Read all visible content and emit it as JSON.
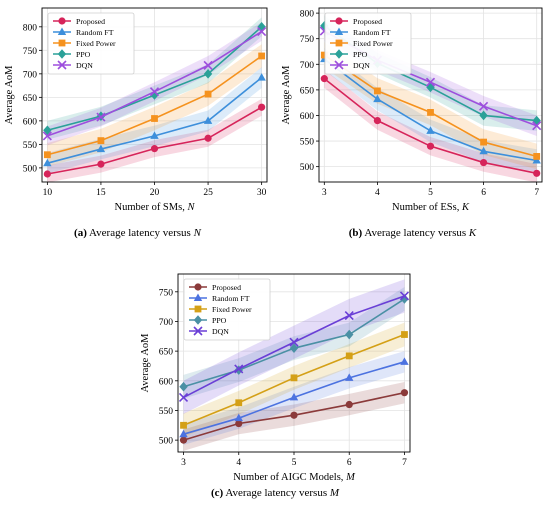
{
  "chart_data": [
    {
      "type": "line",
      "panel": "a",
      "caption": {
        "tag": "(a)",
        "text": "Average latency versus",
        "var": "N"
      },
      "xlabel": "Number of SMs,",
      "xvar": "N",
      "ylabel": "Average AoM",
      "x": [
        10,
        15,
        20,
        25,
        30
      ],
      "xlim": [
        9.5,
        30.5
      ],
      "ylim": [
        470,
        840
      ],
      "yticks": [
        500,
        550,
        600,
        650,
        700,
        750,
        800
      ],
      "grid": true,
      "legend_position": "top-left",
      "series": [
        {
          "name": "Proposed",
          "color": "#d6245a",
          "marker": "circle",
          "values": [
            487,
            508,
            541,
            563,
            629
          ],
          "band": 18
        },
        {
          "name": "Random FT",
          "color": "#3d8fdb",
          "marker": "triangle",
          "values": [
            510,
            540,
            568,
            600,
            692
          ],
          "band": 22
        },
        {
          "name": "Fixed Power",
          "color": "#f5921e",
          "marker": "square",
          "values": [
            528,
            558,
            605,
            657,
            738
          ],
          "band": 25
        },
        {
          "name": "PPO",
          "color": "#2aa198",
          "marker": "diamond",
          "values": [
            580,
            610,
            655,
            700,
            800
          ],
          "band": 20
        },
        {
          "name": "DQN",
          "color": "#9d4edd",
          "marker": "x",
          "values": [
            568,
            608,
            662,
            718,
            790
          ],
          "band": 20
        }
      ]
    },
    {
      "type": "line",
      "panel": "b",
      "caption": {
        "tag": "(b)",
        "text": "Average latency versus",
        "var": "K"
      },
      "xlabel": "Number of ESs,",
      "xvar": "K",
      "ylabel": "Average AoM",
      "x": [
        3,
        4,
        5,
        6,
        7
      ],
      "xlim": [
        2.9,
        7.1
      ],
      "ylim": [
        470,
        810
      ],
      "yticks": [
        500,
        550,
        600,
        650,
        700,
        750,
        800
      ],
      "grid": true,
      "legend_position": "top-left",
      "series": [
        {
          "name": "Proposed",
          "color": "#d6245a",
          "marker": "circle",
          "values": [
            672,
            590,
            540,
            508,
            487
          ],
          "band": 18
        },
        {
          "name": "Random FT",
          "color": "#3d8fdb",
          "marker": "triangle",
          "values": [
            710,
            632,
            570,
            530,
            512
          ],
          "band": 22
        },
        {
          "name": "Fixed Power",
          "color": "#f5921e",
          "marker": "square",
          "values": [
            718,
            648,
            606,
            548,
            520
          ],
          "band": 25
        },
        {
          "name": "PPO",
          "color": "#2aa198",
          "marker": "diamond",
          "values": [
            775,
            702,
            655,
            600,
            590
          ],
          "band": 20
        },
        {
          "name": "DQN",
          "color": "#9d4edd",
          "marker": "x",
          "values": [
            765,
            708,
            665,
            618,
            580
          ],
          "band": 20
        }
      ]
    },
    {
      "type": "line",
      "panel": "c",
      "caption": {
        "tag": "(c)",
        "text": "Average latency versus",
        "var": "M"
      },
      "xlabel": "Number of AIGC Models,",
      "xvar": "M",
      "ylabel": "Average AoM",
      "x": [
        3,
        4,
        5,
        6,
        7
      ],
      "xlim": [
        2.9,
        7.1
      ],
      "ylim": [
        480,
        780
      ],
      "yticks": [
        500,
        550,
        600,
        650,
        700,
        750
      ],
      "grid": true,
      "legend_position": "top-left",
      "series": [
        {
          "name": "Proposed",
          "color": "#8b3a3a",
          "marker": "circle",
          "values": [
            500,
            528,
            542,
            560,
            580
          ],
          "band": 18
        },
        {
          "name": "Random FT",
          "color": "#4c72e0",
          "marker": "triangle",
          "values": [
            510,
            537,
            572,
            605,
            632
          ],
          "band": 18
        },
        {
          "name": "Fixed Power",
          "color": "#d4a017",
          "marker": "square",
          "values": [
            525,
            563,
            605,
            642,
            678
          ],
          "band": 20
        },
        {
          "name": "PPO",
          "color": "#4a90a4",
          "marker": "diamond",
          "values": [
            590,
            618,
            655,
            678,
            738
          ],
          "band": 20
        },
        {
          "name": "DQN",
          "color": "#6a3fd6",
          "marker": "x",
          "values": [
            572,
            620,
            665,
            710,
            743
          ],
          "band": 28
        }
      ]
    }
  ]
}
